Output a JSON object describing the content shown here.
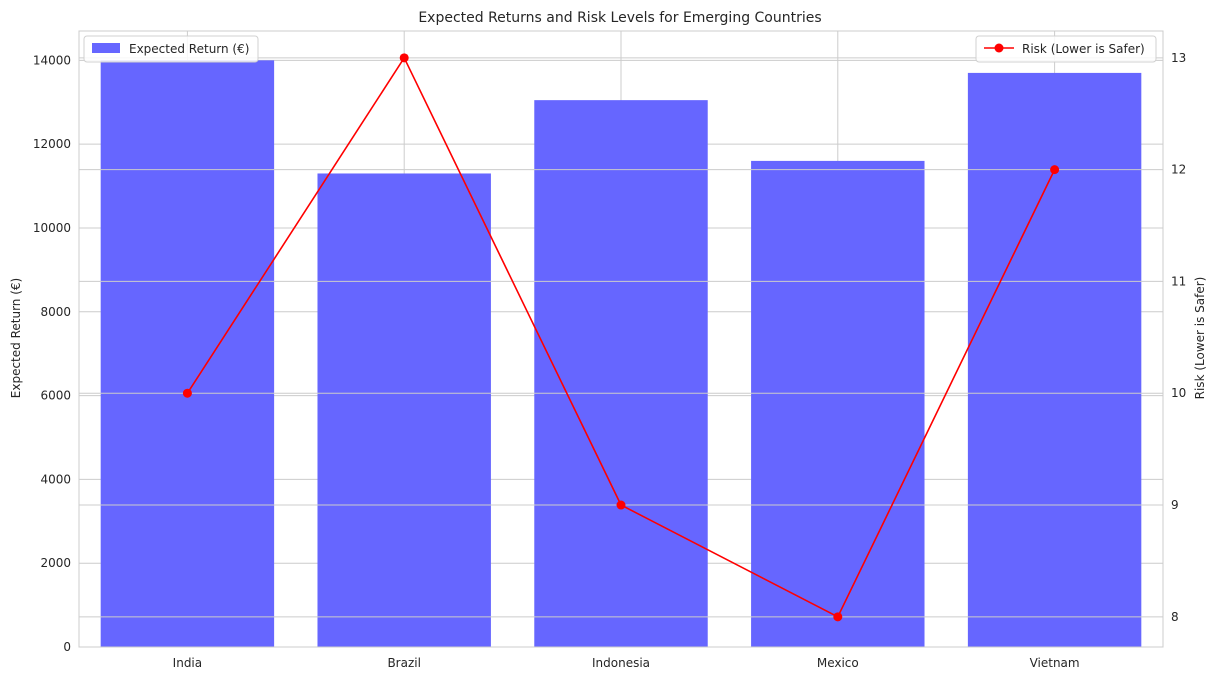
{
  "chart_data": {
    "type": "bar",
    "title": "Expected Returns and Risk Levels for Emerging Countries",
    "categories": [
      "India",
      "Brazil",
      "Indonesia",
      "Mexico",
      "Vietnam"
    ],
    "xlabel": "",
    "ylabel": "Expected Return (€)",
    "ylabel_right": "Risk (Lower is Safer)",
    "ylim": [
      0,
      14700
    ],
    "ylim_right": [
      7.73,
      13.24
    ],
    "yticks": [
      0,
      2000,
      4000,
      6000,
      8000,
      10000,
      12000,
      14000
    ],
    "yticks_right": [
      8,
      9,
      10,
      11,
      12,
      13
    ],
    "grid": true,
    "series": [
      {
        "name": "Expected Return (€)",
        "type": "bar",
        "axis": "left",
        "color": "#6666ff",
        "values": [
          14000,
          11300,
          13050,
          11600,
          13700
        ]
      },
      {
        "name": "Risk (Lower is Safer)",
        "type": "line",
        "axis": "right",
        "color": "#ff0000",
        "marker": "circle",
        "values": [
          10,
          13,
          9,
          8,
          12
        ]
      }
    ],
    "legends": [
      {
        "placement": "top-left",
        "entries": [
          "Expected Return (€)"
        ]
      },
      {
        "placement": "top-right",
        "entries": [
          "Risk (Lower is Safer)"
        ]
      }
    ]
  }
}
